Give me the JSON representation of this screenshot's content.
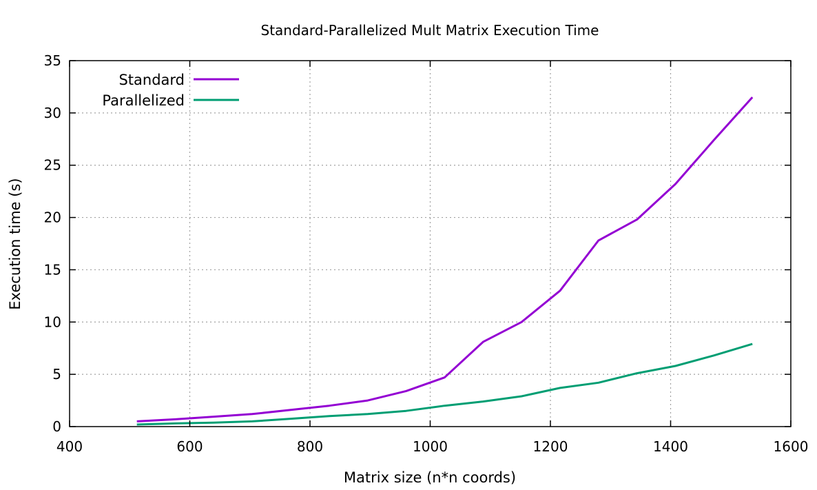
{
  "chart_data": {
    "type": "line",
    "title": "Standard-Parallelized Mult Matrix Execution Time",
    "xlabel": "Matrix size (n*n coords)",
    "ylabel": "Execution time (s)",
    "xlim": [
      400,
      1600
    ],
    "ylim": [
      0,
      35
    ],
    "xticks": [
      400,
      600,
      800,
      1000,
      1200,
      1400,
      1600
    ],
    "yticks": [
      0,
      5,
      10,
      15,
      20,
      25,
      30,
      35
    ],
    "grid": true,
    "legend_position": "top-left",
    "series": [
      {
        "name": "Standard",
        "color": "#9400d3",
        "x": [
          512,
          576,
          640,
          704,
          768,
          832,
          896,
          960,
          1024,
          1088,
          1152,
          1216,
          1280,
          1344,
          1408,
          1472,
          1536
        ],
        "y": [
          0.5,
          0.7,
          0.95,
          1.2,
          1.6,
          2.0,
          2.5,
          3.4,
          4.7,
          8.1,
          10.0,
          13.0,
          17.8,
          19.8,
          23.2,
          27.4,
          31.5
        ]
      },
      {
        "name": "Parallelized",
        "color": "#009e73",
        "x": [
          512,
          576,
          640,
          704,
          768,
          832,
          896,
          960,
          1024,
          1088,
          1152,
          1216,
          1280,
          1344,
          1408,
          1472,
          1536
        ],
        "y": [
          0.2,
          0.3,
          0.38,
          0.5,
          0.75,
          1.0,
          1.2,
          1.5,
          2.0,
          2.4,
          2.9,
          3.7,
          4.2,
          5.1,
          5.8,
          6.8,
          7.9
        ]
      }
    ]
  }
}
